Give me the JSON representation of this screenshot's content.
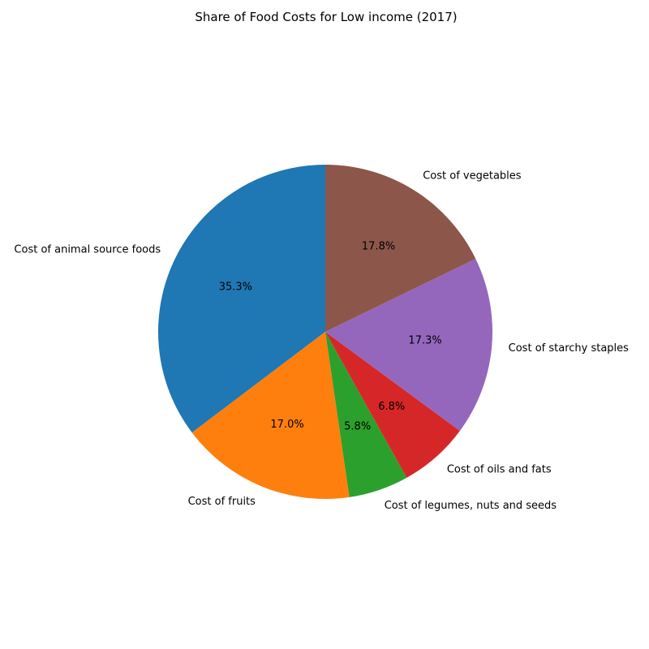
{
  "chart_data": {
    "type": "pie",
    "title": "Share of Food Costs for Low income (2017)",
    "slices": [
      {
        "label": "Cost of animal source foods",
        "value": 35.3,
        "pct_label": "35.3%",
        "color": "#1f77b4"
      },
      {
        "label": "Cost of fruits",
        "value": 17.0,
        "pct_label": "17.0%",
        "color": "#ff7f0e"
      },
      {
        "label": "Cost of legumes, nuts and seeds",
        "value": 5.8,
        "pct_label": "5.8%",
        "color": "#2ca02c"
      },
      {
        "label": "Cost of oils and fats",
        "value": 6.8,
        "pct_label": "6.8%",
        "color": "#d62728"
      },
      {
        "label": "Cost of starchy staples",
        "value": 17.3,
        "pct_label": "17.3%",
        "color": "#9467bd"
      },
      {
        "label": "Cost of vegetables",
        "value": 17.8,
        "pct_label": "17.8%",
        "color": "#8c564b"
      }
    ],
    "start_angle_deg": 90,
    "direction": "counterclockwise"
  }
}
